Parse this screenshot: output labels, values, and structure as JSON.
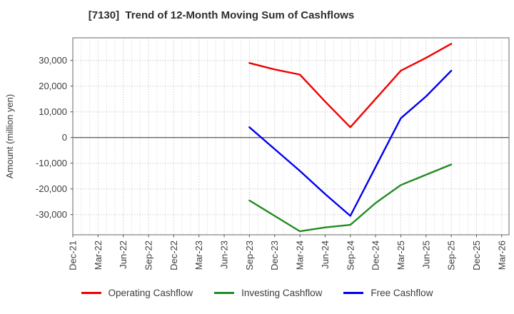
{
  "chart_data": {
    "type": "line",
    "title": "[7130]  Trend of 12-Month Moving Sum of Cashflows",
    "xlabel": "",
    "ylabel": "Amount (million yen)",
    "categories": [
      "Dec-21",
      "Mar-22",
      "Jun-22",
      "Sep-22",
      "Dec-22",
      "Mar-23",
      "Jun-23",
      "Sep-23",
      "Dec-23",
      "Mar-24",
      "Jun-24",
      "Sep-24",
      "Dec-24",
      "Mar-25",
      "Jun-25",
      "Sep-25",
      "Dec-25",
      "Mar-26"
    ],
    "yticks": {
      "values": [
        30000,
        20000,
        10000,
        0,
        -10000,
        -20000,
        -30000
      ],
      "labels": [
        "30,000",
        "20,000",
        "10,000",
        "0",
        "-10,000",
        "-20,000",
        "-30,000"
      ]
    },
    "ylim": [
      -38000,
      38800
    ],
    "grid": true,
    "legend_position": "bottom-center",
    "data_start_index": 7,
    "data_categories": [
      "Sep-23",
      "Dec-23",
      "Mar-24",
      "Jun-24",
      "Sep-24",
      "Dec-24",
      "Mar-25",
      "Jun-25",
      "Sep-25"
    ],
    "series": [
      {
        "name": "Operating Cashflow",
        "color": "#f00000",
        "values": [
          29000,
          26500,
          24500,
          14000,
          4000,
          15000,
          26000,
          31000,
          36500
        ]
      },
      {
        "name": "Investing Cashflow",
        "color": "#228b22",
        "values": [
          -24500,
          -30500,
          -36500,
          -35000,
          -34000,
          -25500,
          -18500,
          -14500,
          -10500
        ]
      },
      {
        "name": "Free Cashflow",
        "color": "#0000f0",
        "values": [
          4000,
          -4500,
          -13000,
          -22000,
          -30500,
          -11500,
          7500,
          16000,
          26000
        ]
      }
    ],
    "axis_colors": {
      "frame": "#808080",
      "zero_line": "#666666",
      "grid_major": "#b3b3b3",
      "grid_minor": "#cfcfcf"
    }
  }
}
